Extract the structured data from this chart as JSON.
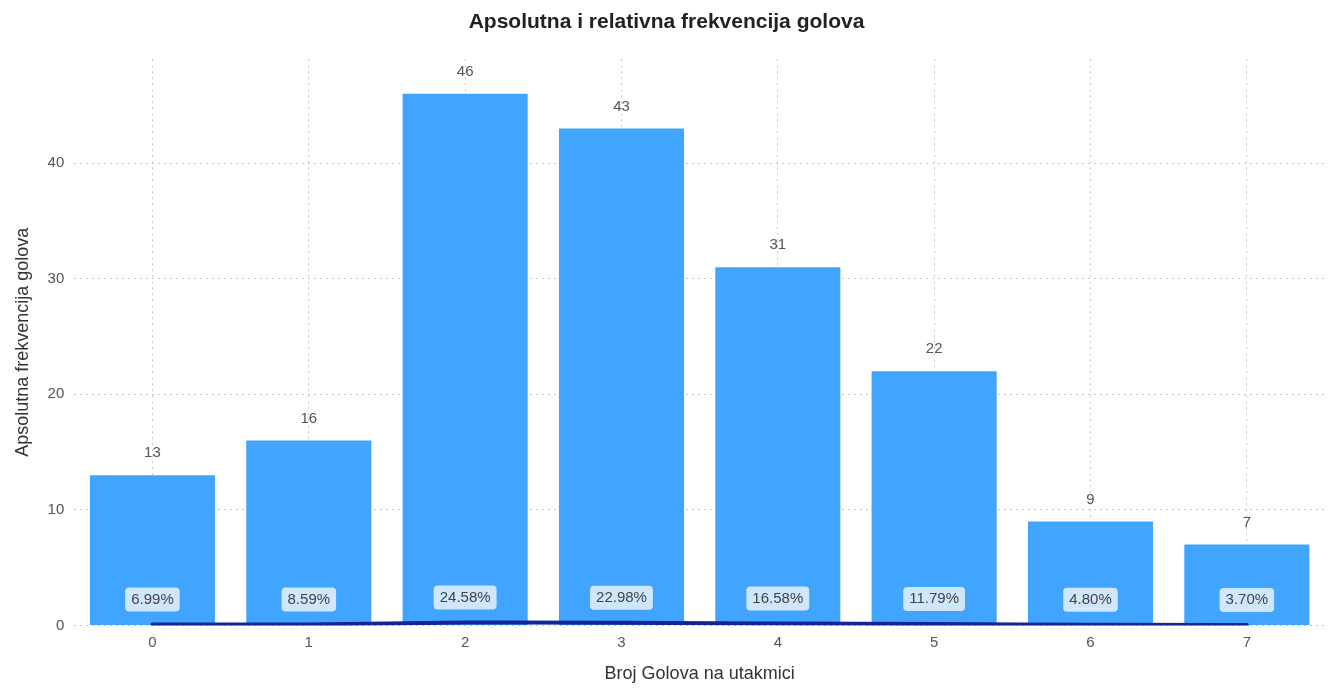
{
  "chart_data": {
    "type": "bar",
    "title": "Apsolutna i relativna frekvencija golova",
    "xlabel": "Broj Golova na utakmici",
    "ylabel": "Apsolutna frekvencija golova",
    "categories": [
      "0",
      "1",
      "2",
      "3",
      "4",
      "5",
      "6",
      "7"
    ],
    "series": [
      {
        "color": "#41a5ff",
        "values": [
          13,
          16,
          46,
          43,
          31,
          22,
          9,
          7
        ],
        "value_labels": [
          "13",
          "16",
          "46",
          "43",
          "31",
          "22",
          "9",
          "7"
        ]
      },
      {
        "type": "line",
        "color": "#12239e",
        "values": [
          0.0699,
          0.0859,
          0.2458,
          0.2298,
          0.1658,
          0.1179,
          0.048,
          0.037
        ],
        "value_labels": [
          "6.99%",
          "8.59%",
          "24.58%",
          "22.98%",
          "16.58%",
          "11.79%",
          "4.80%",
          "3.70%"
        ]
      }
    ],
    "ylim": [
      0,
      49
    ],
    "yticks": [
      0,
      10,
      20,
      30,
      40
    ],
    "grid": true,
    "legend": false,
    "marker": "none",
    "line_style": "solid"
  }
}
